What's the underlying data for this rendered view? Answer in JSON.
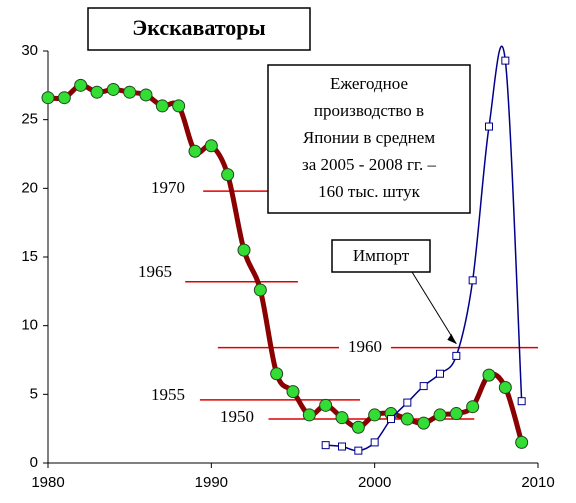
{
  "chart_data": {
    "type": "line",
    "title": "Экскаваторы",
    "xlim": [
      1980,
      2010
    ],
    "xticks": [
      1980,
      1990,
      2000,
      2010
    ],
    "ylim": [
      0,
      30
    ],
    "yticks": [
      0,
      5,
      10,
      15,
      20,
      25,
      30
    ],
    "series": [
      {
        "color": "#8b0000",
        "marker_color": "#33dd33",
        "x": [
          1980,
          1981,
          1982,
          1983,
          1984,
          1985,
          1986,
          1987,
          1988,
          1989,
          1990,
          1991,
          1992,
          1993,
          1994,
          1995,
          1996,
          1997,
          1998,
          1999,
          2000,
          2001,
          2002,
          2003,
          2004,
          2005,
          2006,
          2007,
          2008,
          2009
        ],
        "values": [
          26.6,
          26.6,
          27.5,
          27.0,
          27.2,
          27.0,
          26.8,
          26.0,
          26.0,
          22.7,
          23.1,
          21.0,
          15.5,
          12.6,
          6.5,
          5.2,
          3.5,
          4.2,
          3.3,
          2.6,
          3.5,
          3.6,
          3.2,
          2.9,
          3.5,
          3.6,
          4.1,
          6.4,
          5.5,
          1.5
        ]
      },
      {
        "name": "Импорт",
        "color": "#00008b",
        "marker_color": "#ffffff",
        "x": [
          1997,
          1998,
          1999,
          2000,
          2001,
          2002,
          2003,
          2004,
          2005,
          2006,
          2007,
          2008,
          2009
        ],
        "values": [
          1.3,
          1.2,
          0.9,
          1.5,
          3.2,
          4.4,
          5.6,
          6.5,
          7.8,
          13.3,
          24.5,
          29.3,
          4.5
        ]
      }
    ],
    "reference_lines": [
      {
        "label": "1970",
        "y": 19.8,
        "x": [
          1989.5,
          1995.5
        ]
      },
      {
        "label": "1965",
        "y": 13.2,
        "x": [
          1988.4,
          1995.3
        ]
      },
      {
        "label": "1960",
        "y": 8.4,
        "x": [
          1990.4,
          2010
        ]
      },
      {
        "label": "1955",
        "y": 4.6,
        "x": [
          1989.3,
          1999.1
        ]
      },
      {
        "label": "1950",
        "y": 3.2,
        "x": [
          1993.5,
          2006.1
        ]
      }
    ],
    "annotation": [
      "Ежегодное",
      "производство в",
      "Японии в среднем",
      "за 2005 - 2008 гг. –",
      "160 тыс. штук"
    ],
    "reference_color": "#e00000"
  }
}
